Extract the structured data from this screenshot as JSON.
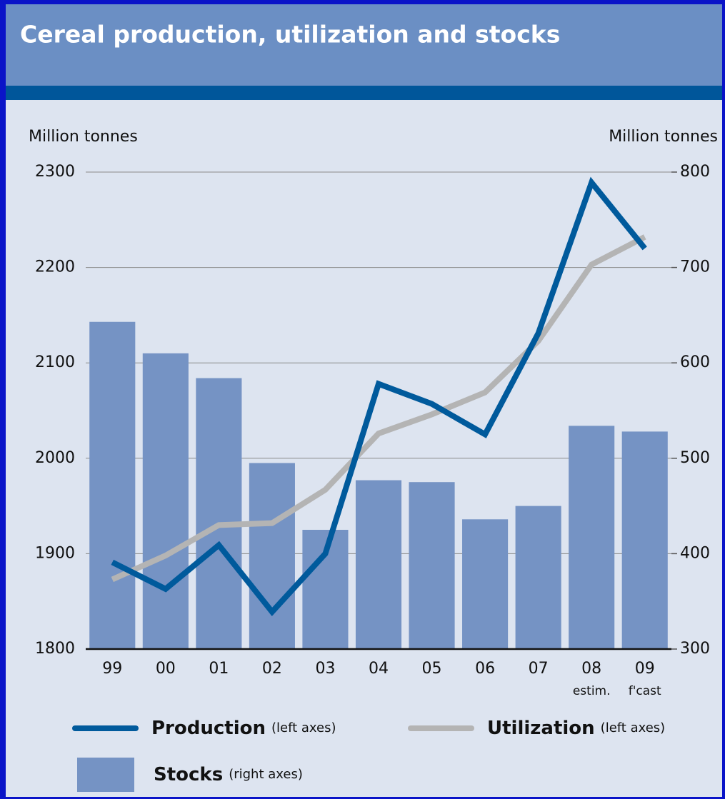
{
  "chart_data": {
    "type": "bar_line",
    "title": "Cereal production, utilization and stocks",
    "y_label": "Million tonnes",
    "y2_label": "Million tonnes",
    "categories": [
      "99",
      "00",
      "01",
      "02",
      "03",
      "04",
      "05",
      "06",
      "07",
      "08",
      "09"
    ],
    "category_notes": [
      null,
      null,
      null,
      null,
      null,
      null,
      null,
      null,
      null,
      "estim.",
      "f'cast"
    ],
    "ylim": [
      1800,
      2300
    ],
    "yticks": [
      1800,
      1900,
      2000,
      2100,
      2200,
      2300
    ],
    "y2lim": [
      300,
      800
    ],
    "y2ticks": [
      300,
      400,
      500,
      600,
      700,
      800
    ],
    "grid": true,
    "series": [
      {
        "name": "Production",
        "note": "(left axes)",
        "kind": "line",
        "axis": "y",
        "color": "#005a9c",
        "values": [
          1891,
          1863,
          1909,
          1839,
          1900,
          2078,
          2057,
          2025,
          2131,
          2289,
          2220
        ]
      },
      {
        "name": "Utilization",
        "note": "(left axes)",
        "kind": "line",
        "axis": "y",
        "color": "#b4b4b4",
        "values": [
          1873,
          1898,
          1930,
          1932,
          1967,
          2026,
          2046,
          2069,
          2123,
          2203,
          2232
        ]
      },
      {
        "name": "Stocks",
        "note": "(right axes)",
        "kind": "bar",
        "axis": "y2",
        "color": "#7593c4",
        "values": [
          643,
          610,
          584,
          495,
          425,
          477,
          475,
          436,
          450,
          534,
          528
        ]
      }
    ]
  }
}
